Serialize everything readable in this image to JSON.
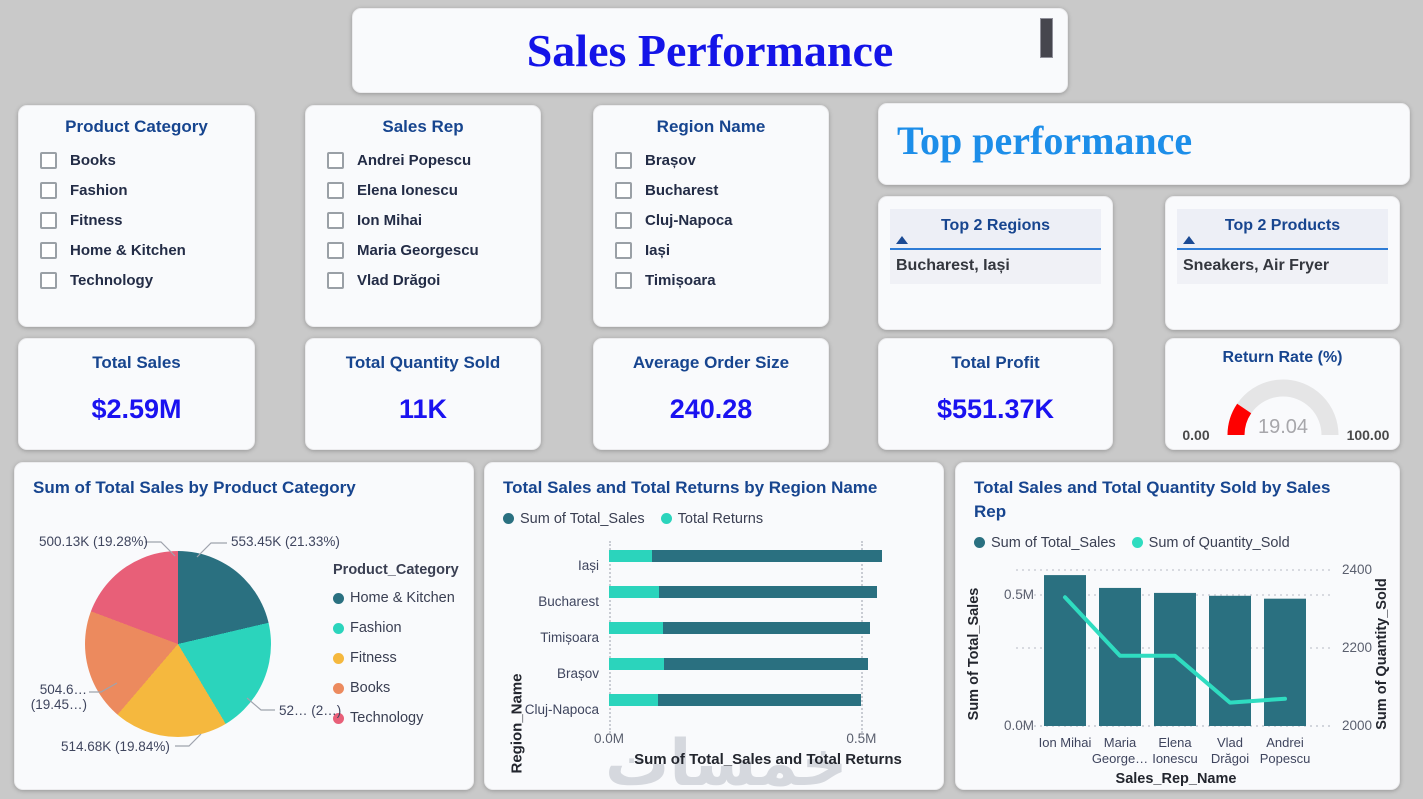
{
  "page": {
    "background": "#c9c9c9",
    "card_background": "#f9fafc",
    "watermark": "خمسات"
  },
  "header": {
    "title": "Sales Performance",
    "title_color": "#1414e8"
  },
  "top_performance": {
    "title": "Top performance",
    "color": "#1d8ee9"
  },
  "slicers": [
    {
      "title": "Product Category",
      "items": [
        "Books",
        "Fashion",
        "Fitness",
        "Home & Kitchen",
        "Technology"
      ]
    },
    {
      "title": "Sales Rep",
      "items": [
        "Andrei Popescu",
        "Elena Ionescu",
        "Ion Mihai",
        "Maria Georgescu",
        "Vlad Drăgoi"
      ]
    },
    {
      "title": "Region Name",
      "items": [
        "Brașov",
        "Bucharest",
        "Cluj-Napoca",
        "Iași",
        "Timișoara"
      ]
    }
  ],
  "top_tables": [
    {
      "title": "Top 2 Regions",
      "value": "Bucharest, Iași",
      "sort": "ascending"
    },
    {
      "title": "Top 2 Products",
      "value": "Sneakers, Air Fryer",
      "sort": "ascending"
    }
  ],
  "kpis": [
    {
      "label": "Total Sales",
      "value": "$2.59M"
    },
    {
      "label": "Total Quantity Sold",
      "value": "11K"
    },
    {
      "label": "Average Order Size",
      "value": "240.28"
    },
    {
      "label": "Total Profit",
      "value": "$551.37K"
    }
  ],
  "chart_data": [
    {
      "id": "pie-sales-by-category",
      "type": "pie",
      "title": "Sum of Total Sales by Product Category",
      "legend_title": "Product_Category",
      "legend_position": "right",
      "slices": [
        {
          "label": "Home & Kitchen",
          "value_K": 553.45,
          "pct": 21.33,
          "display": "553.45K (21.33%)",
          "color": "#2a7080"
        },
        {
          "label": "Fashion",
          "value_K": 521.5,
          "pct": 20.1,
          "display": "52… (2…)",
          "color": "#2bd4bc"
        },
        {
          "label": "Fitness",
          "value_K": 514.68,
          "pct": 19.84,
          "display": "514.68K (19.84%)",
          "color": "#f5b83e"
        },
        {
          "label": "Books",
          "value_K": 504.6,
          "pct": 19.45,
          "display": "504.6…\n(19.45…)",
          "color": "#ec8a5e"
        },
        {
          "label": "Technology",
          "value_K": 500.13,
          "pct": 19.28,
          "display": "500.13K (19.28%)",
          "color": "#e85f78"
        }
      ]
    },
    {
      "id": "bars-sales-returns-by-region",
      "type": "bar",
      "orientation": "horizontal",
      "title": "Total Sales and Total Returns by Region Name",
      "categories": [
        "Iași",
        "Bucharest",
        "Timișoara",
        "Brașov",
        "Cluj-Napoca"
      ],
      "series": [
        {
          "name": "Sum of Total_Sales",
          "color": "#2a7080",
          "values_M": [
            0.54,
            0.53,
            0.518,
            0.514,
            0.5
          ]
        },
        {
          "name": "Total Returns",
          "color": "#2bd4bc",
          "values_M": [
            0.086,
            0.1,
            0.106,
            0.108,
            0.098
          ]
        }
      ],
      "x_ticks": [
        {
          "label": "0.0M",
          "value_M": 0
        },
        {
          "label": "0.5M",
          "value_M": 0.5
        }
      ],
      "x_max_M": 0.63,
      "xlabel": "Sum of Total_Sales and Total Returns",
      "ylabel": "Region_Name",
      "grid": "dotted-vertical"
    },
    {
      "id": "combo-sales-qty-by-rep",
      "type": "bar+line",
      "title": "Total Sales and Total Quantity Sold by Sales Rep",
      "categories": [
        [
          "Ion Mihai"
        ],
        [
          "Maria",
          "George…"
        ],
        [
          "Elena",
          "Ionescu"
        ],
        [
          "Vlad",
          "Drăgoi"
        ],
        [
          "Andrei",
          "Popescu"
        ]
      ],
      "bar_series": {
        "name": "Sum of Total_Sales",
        "color": "#2a7080",
        "values_M": [
          0.576,
          0.527,
          0.508,
          0.497,
          0.486
        ]
      },
      "line_series": {
        "name": "Sum of Quantity_Sold",
        "color": "#2fdcc0",
        "values": [
          2330,
          2180,
          2180,
          2060,
          2070
        ]
      },
      "left_axis": {
        "label": "Sum of Total_Sales",
        "ticks": [
          {
            "label": "0.0M",
            "value_M": 0
          },
          {
            "label": "0.5M",
            "value_M": 0.5
          }
        ]
      },
      "right_axis": {
        "label": "Sum of Quantity_Sold",
        "min": 2000,
        "max": 2400,
        "ticks": [
          2000,
          2200,
          2400
        ]
      },
      "xlabel": "Sales_Rep_Name",
      "grid": "dotted-horizontal"
    },
    {
      "id": "gauge-return-rate",
      "type": "gauge",
      "title": "Return Rate (%)",
      "value": 19.04,
      "min": 0,
      "max": 100,
      "display_value": "19.04",
      "min_label": "0.00",
      "max_label": "100.00",
      "fill_color": "#fe0000",
      "track_color": "#e5e5e6"
    }
  ]
}
